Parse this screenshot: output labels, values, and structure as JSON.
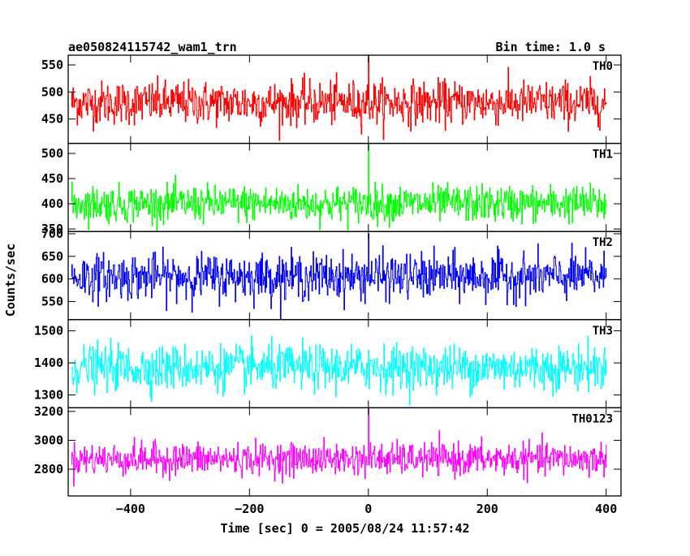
{
  "header": {
    "title": "ae050824115742_wam1_trn",
    "bin_time": "Bin time: 1.0 s"
  },
  "xlabel": "Time [sec] 0 = 2005/08/24 11:57:42",
  "ylabel": "Counts/sec",
  "chart_data": {
    "type": "line",
    "title": "ae050824115742_wam1_trn",
    "xlabel": "Time [sec] 0 = 2005/08/24 11:57:42",
    "ylabel": "Counts/sec",
    "xlim": [
      -505,
      425
    ],
    "x_ticks": [
      -400,
      -200,
      0,
      200,
      400
    ],
    "x_tick_labels": [
      "−400",
      "−200",
      "0",
      "200",
      "400"
    ],
    "x_range": [
      -500,
      400
    ],
    "grid": false,
    "series": [
      {
        "name": "TH0",
        "color": "#ff0000",
        "ylim": [
          405,
          568
        ],
        "yticks": [
          450,
          500,
          550
        ],
        "mean": 480,
        "sd": 20,
        "spike_at": 0,
        "spike_value": 568
      },
      {
        "name": "TH1",
        "color": "#00ff00",
        "ylim": [
          345,
          520
        ],
        "yticks": [
          350,
          400,
          450,
          500
        ],
        "mean": 400,
        "sd": 18,
        "spike_at": 0,
        "spike_value": 520
      },
      {
        "name": "TH2",
        "color": "#0000ff",
        "ylim": [
          510,
          705
        ],
        "yticks": [
          550,
          600,
          650,
          700
        ],
        "mean": 605,
        "sd": 25,
        "spike_at": 0,
        "spike_value": 700
      },
      {
        "name": "TH3",
        "color": "#00ffff",
        "ylim": [
          1260,
          1535
        ],
        "yticks": [
          1300,
          1400,
          1500
        ],
        "mean": 1385,
        "sd": 35,
        "spike_at": 0,
        "spike_value": 1440
      },
      {
        "name": "TH0123",
        "color": "#ff00ff",
        "ylim": [
          2615,
          3225
        ],
        "yticks": [
          2800,
          3000,
          3200
        ],
        "mean": 2870,
        "sd": 55,
        "spike_at": 0,
        "spike_value": 3220
      }
    ]
  }
}
